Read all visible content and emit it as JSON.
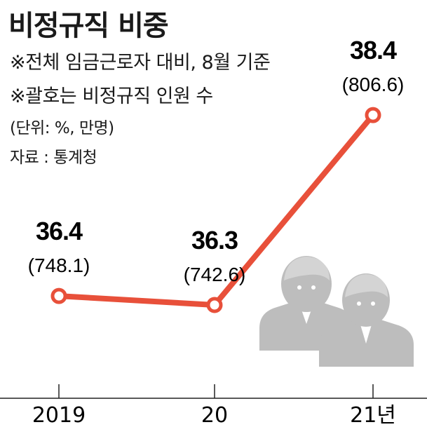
{
  "title": "비정규직 비중",
  "notes": [
    "※전체 임금근로자 대비, 8월 기준",
    "※괄호는 비정규직 인원 수"
  ],
  "unit_note": "(단위: %, 만명)",
  "source": "자료 : 통계청",
  "colors": {
    "line": "#e8503a",
    "people": "#bdbdbd"
  },
  "chart_data": {
    "type": "line",
    "categories": [
      "2019",
      "20",
      "21년"
    ],
    "series": [
      {
        "values": [
          36.4,
          36.3,
          38.4
        ],
        "counts": [
          748.1,
          742.6,
          806.6
        ]
      }
    ],
    "value_labels": [
      "36.4",
      "36.3",
      "38.4"
    ],
    "count_labels": [
      "(748.1)",
      "(742.6)",
      "(806.6)"
    ],
    "grid": false
  }
}
